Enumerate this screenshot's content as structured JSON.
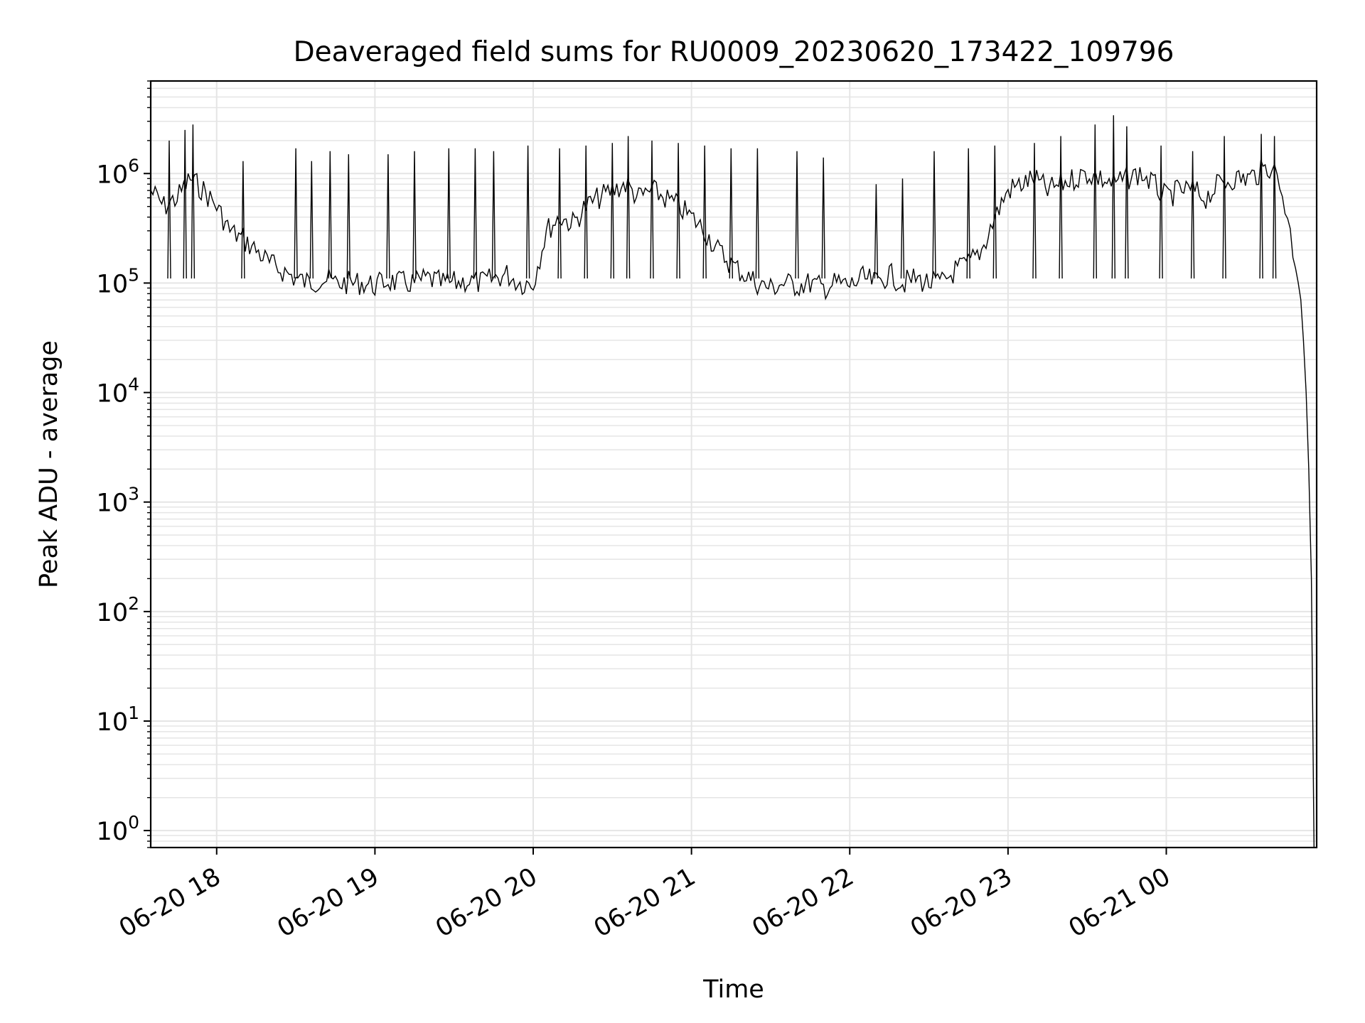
{
  "chart_data": {
    "type": "line",
    "title": "Deaveraged field sums for RU0009_20230620_173422_109796",
    "xlabel": "Time",
    "ylabel": "Peak ADU - average",
    "xscale": "time",
    "yscale": "log",
    "xlim": [
      "2023-06-20T17:35:00",
      "2023-06-21T00:57:00"
    ],
    "ylim": [
      0.7,
      7000000
    ],
    "grid": true,
    "legend": false,
    "line_color": "#000000",
    "grid_color": "#e5e5e5",
    "x_ticks": [
      {
        "t": "2023-06-20T18:00:00",
        "label": "06-20 18"
      },
      {
        "t": "2023-06-20T19:00:00",
        "label": "06-20 19"
      },
      {
        "t": "2023-06-20T20:00:00",
        "label": "06-20 20"
      },
      {
        "t": "2023-06-20T21:00:00",
        "label": "06-20 21"
      },
      {
        "t": "2023-06-20T22:00:00",
        "label": "06-20 22"
      },
      {
        "t": "2023-06-20T23:00:00",
        "label": "06-20 23"
      },
      {
        "t": "2023-06-21T00:00:00",
        "label": "06-21 00"
      }
    ],
    "y_ticks": [
      {
        "value": 1,
        "base": "10",
        "exp": "0"
      },
      {
        "value": 10,
        "base": "10",
        "exp": "1"
      },
      {
        "value": 100,
        "base": "10",
        "exp": "2"
      },
      {
        "value": 1000,
        "base": "10",
        "exp": "3"
      },
      {
        "value": 10000,
        "base": "10",
        "exp": "4"
      },
      {
        "value": 100000,
        "base": "10",
        "exp": "5"
      },
      {
        "value": 1000000,
        "base": "10",
        "exp": "6"
      }
    ],
    "series": [
      {
        "x": [
          "2023-06-20T17:35:00",
          "2023-06-20T17:40:00",
          "2023-06-20T17:45:00",
          "2023-06-20T17:50:00",
          "2023-06-20T17:55:00",
          "2023-06-20T18:00:00",
          "2023-06-20T18:05:00",
          "2023-06-20T18:10:00",
          "2023-06-20T18:15:00",
          "2023-06-20T18:20:00",
          "2023-06-20T18:25:00",
          "2023-06-20T18:30:00",
          "2023-06-20T18:35:00",
          "2023-06-20T18:40:00",
          "2023-06-20T18:45:00",
          "2023-06-20T18:50:00",
          "2023-06-20T18:55:00",
          "2023-06-20T19:00:00",
          "2023-06-20T19:05:00",
          "2023-06-20T19:10:00",
          "2023-06-20T19:15:00",
          "2023-06-20T19:20:00",
          "2023-06-20T19:25:00",
          "2023-06-20T19:30:00",
          "2023-06-20T19:35:00",
          "2023-06-20T19:40:00",
          "2023-06-20T19:45:00",
          "2023-06-20T19:50:00",
          "2023-06-20T19:55:00",
          "2023-06-20T20:00:00",
          "2023-06-20T20:05:00",
          "2023-06-20T20:10:00",
          "2023-06-20T20:15:00",
          "2023-06-20T20:20:00",
          "2023-06-20T20:25:00",
          "2023-06-20T20:30:00",
          "2023-06-20T20:35:00",
          "2023-06-20T20:40:00",
          "2023-06-20T20:45:00",
          "2023-06-20T20:50:00",
          "2023-06-20T20:55:00",
          "2023-06-20T21:00:00",
          "2023-06-20T21:05:00",
          "2023-06-20T21:10:00",
          "2023-06-20T21:15:00",
          "2023-06-20T21:20:00",
          "2023-06-20T21:25:00",
          "2023-06-20T21:30:00",
          "2023-06-20T21:35:00",
          "2023-06-20T21:40:00",
          "2023-06-20T21:45:00",
          "2023-06-20T21:50:00",
          "2023-06-20T21:55:00",
          "2023-06-20T22:00:00",
          "2023-06-20T22:05:00",
          "2023-06-20T22:10:00",
          "2023-06-20T22:15:00",
          "2023-06-20T22:20:00",
          "2023-06-20T22:25:00",
          "2023-06-20T22:30:00",
          "2023-06-20T22:35:00",
          "2023-06-20T22:40:00",
          "2023-06-20T22:45:00",
          "2023-06-20T22:50:00",
          "2023-06-20T22:55:00",
          "2023-06-20T23:00:00",
          "2023-06-20T23:05:00",
          "2023-06-20T23:10:00",
          "2023-06-20T23:15:00",
          "2023-06-20T23:20:00",
          "2023-06-20T23:25:00",
          "2023-06-20T23:30:00",
          "2023-06-20T23:35:00",
          "2023-06-20T23:40:00",
          "2023-06-20T23:45:00",
          "2023-06-20T23:50:00",
          "2023-06-20T23:55:00",
          "2023-06-21T00:00:00",
          "2023-06-21T00:05:00",
          "2023-06-21T00:10:00",
          "2023-06-21T00:15:00",
          "2023-06-21T00:20:00",
          "2023-06-21T00:25:00",
          "2023-06-21T00:30:00",
          "2023-06-21T00:35:00",
          "2023-06-21T00:40:00",
          "2023-06-21T00:43:00",
          "2023-06-21T00:46:00",
          "2023-06-21T00:48:00",
          "2023-06-21T00:50:00",
          "2023-06-21T00:51:00",
          "2023-06-21T00:52:00",
          "2023-06-21T00:53:00",
          "2023-06-21T00:54:00",
          "2023-06-21T00:55:00",
          "2023-06-21T00:56:00"
        ],
        "y": [
          700000,
          500000,
          600000,
          900000,
          700000,
          500000,
          300000,
          250000,
          200000,
          150000,
          130000,
          110000,
          100000,
          110000,
          100000,
          100000,
          100000,
          95000,
          105000,
          100000,
          100000,
          110000,
          100000,
          100000,
          105000,
          100000,
          110000,
          120000,
          100000,
          100000,
          300000,
          400000,
          350000,
          500000,
          600000,
          700000,
          800000,
          600000,
          700000,
          600000,
          500000,
          400000,
          300000,
          200000,
          150000,
          120000,
          100000,
          90000,
          100000,
          95000,
          100000,
          90000,
          100000,
          95000,
          110000,
          100000,
          120000,
          100000,
          110000,
          100000,
          100000,
          130000,
          150000,
          200000,
          400000,
          700000,
          800000,
          900000,
          700000,
          800000,
          900000,
          1000000,
          900000,
          800000,
          900000,
          1000000,
          800000,
          600000,
          700000,
          700000,
          600000,
          800000,
          900000,
          900000,
          1000000,
          1200000,
          800000,
          400000,
          200000,
          120000,
          80000,
          30000,
          10000,
          2000,
          200,
          0.5
        ],
        "spikes": [
          [
            "2023-06-20T17:42:00",
            2000000
          ],
          [
            "2023-06-20T17:48:00",
            2500000
          ],
          [
            "2023-06-20T17:51:00",
            2800000
          ],
          [
            "2023-06-20T18:10:00",
            1300000
          ],
          [
            "2023-06-20T18:30:00",
            1700000
          ],
          [
            "2023-06-20T18:36:00",
            1300000
          ],
          [
            "2023-06-20T18:43:00",
            1600000
          ],
          [
            "2023-06-20T18:50:00",
            1500000
          ],
          [
            "2023-06-20T19:05:00",
            1500000
          ],
          [
            "2023-06-20T19:15:00",
            1600000
          ],
          [
            "2023-06-20T19:28:00",
            1700000
          ],
          [
            "2023-06-20T19:38:00",
            1700000
          ],
          [
            "2023-06-20T19:45:00",
            1600000
          ],
          [
            "2023-06-20T19:58:00",
            1800000
          ],
          [
            "2023-06-20T20:10:00",
            1700000
          ],
          [
            "2023-06-20T20:20:00",
            1800000
          ],
          [
            "2023-06-20T20:30:00",
            1900000
          ],
          [
            "2023-06-20T20:36:00",
            2200000
          ],
          [
            "2023-06-20T20:45:00",
            2000000
          ],
          [
            "2023-06-20T20:55:00",
            1900000
          ],
          [
            "2023-06-20T21:05:00",
            1800000
          ],
          [
            "2023-06-20T21:15:00",
            1700000
          ],
          [
            "2023-06-20T21:25:00",
            1700000
          ],
          [
            "2023-06-20T21:40:00",
            1600000
          ],
          [
            "2023-06-20T21:50:00",
            1400000
          ],
          [
            "2023-06-20T22:10:00",
            800000
          ],
          [
            "2023-06-20T22:20:00",
            900000
          ],
          [
            "2023-06-20T22:32:00",
            1600000
          ],
          [
            "2023-06-20T22:45:00",
            1700000
          ],
          [
            "2023-06-20T22:55:00",
            1800000
          ],
          [
            "2023-06-20T23:10:00",
            1900000
          ],
          [
            "2023-06-20T23:20:00",
            2200000
          ],
          [
            "2023-06-20T23:33:00",
            2800000
          ],
          [
            "2023-06-20T23:40:00",
            3400000
          ],
          [
            "2023-06-20T23:45:00",
            2700000
          ],
          [
            "2023-06-20T23:58:00",
            1800000
          ],
          [
            "2023-06-21T00:10:00",
            1600000
          ],
          [
            "2023-06-21T00:22:00",
            2200000
          ],
          [
            "2023-06-21T00:36:00",
            2300000
          ],
          [
            "2023-06-21T00:41:00",
            2200000
          ]
        ]
      }
    ]
  }
}
